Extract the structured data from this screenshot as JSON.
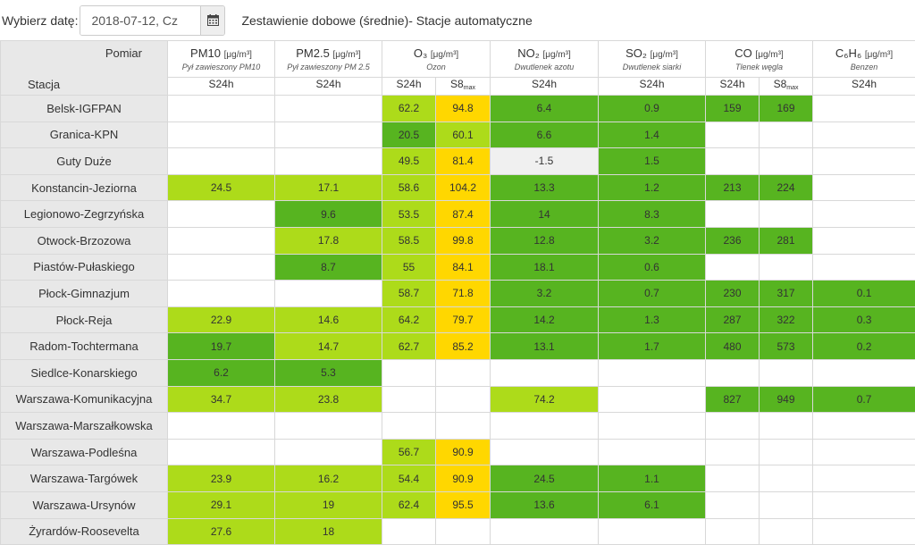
{
  "date_picker": {
    "label": "Wybierz datę:",
    "value": "2018-07-12, Cz",
    "button_icon": "calendar-icon"
  },
  "report_title": "Zestawienie dobowe (średnie)- Stacje automatyczne",
  "table": {
    "corner_top": "Pomiar",
    "corner_bottom": "Stacja",
    "subheaders": {
      "s24h": "S24h",
      "s8": "S8",
      "s8_sub": "max"
    },
    "pollutants": [
      {
        "name": "PM10",
        "unit": "[μg/m³]",
        "desc": "Pył zawieszony PM10",
        "subcols": [
          "S24h"
        ]
      },
      {
        "name": "PM2.5",
        "unit": "[μg/m³]",
        "desc": "Pył zawieszony PM 2.5",
        "subcols": [
          "S24h"
        ]
      },
      {
        "name": "O₃",
        "unit": "[μg/m³]",
        "desc": "Ozon",
        "subcols": [
          "S24h",
          "S8max"
        ]
      },
      {
        "name": "NO₂",
        "unit": "[μg/m³]",
        "desc": "Dwutlenek azotu",
        "subcols": [
          "S24h"
        ]
      },
      {
        "name": "SO₂",
        "unit": "[μg/m³]",
        "desc": "Dwutlenek siarki",
        "subcols": [
          "S24h"
        ]
      },
      {
        "name": "CO",
        "unit": "[μg/m³]",
        "desc": "Tlenek węgla",
        "subcols": [
          "S24h",
          "S8max"
        ]
      },
      {
        "name": "C₆H₆",
        "unit": "[μg/m³]",
        "desc": "Benzen",
        "subcols": [
          "S24h"
        ]
      }
    ],
    "colors": {
      "good": "#57b420",
      "ok": "#addb1a",
      "moderate": "#ffd700",
      "grey": "#f0f0f0",
      "none": "#ffffff"
    },
    "rows": [
      {
        "station": "Belsk-IGFPAN",
        "cells": [
          [
            "",
            ""
          ],
          [
            "",
            ""
          ],
          [
            "62.2",
            "ok"
          ],
          [
            "94.8",
            "moderate"
          ],
          [
            "6.4",
            "good"
          ],
          [
            "0.9",
            "good"
          ],
          [
            "159",
            "good"
          ],
          [
            "169",
            "good"
          ],
          [
            "",
            ""
          ]
        ]
      },
      {
        "station": "Granica-KPN",
        "cells": [
          [
            "",
            ""
          ],
          [
            "",
            ""
          ],
          [
            "20.5",
            "good"
          ],
          [
            "60.1",
            "ok"
          ],
          [
            "6.6",
            "good"
          ],
          [
            "1.4",
            "good"
          ],
          [
            "",
            ""
          ],
          [
            "",
            ""
          ],
          [
            "",
            ""
          ]
        ]
      },
      {
        "station": "Guty Duże",
        "cells": [
          [
            "",
            ""
          ],
          [
            "",
            ""
          ],
          [
            "49.5",
            "ok"
          ],
          [
            "81.4",
            "moderate"
          ],
          [
            "-1.5",
            "grey"
          ],
          [
            "1.5",
            "good"
          ],
          [
            "",
            ""
          ],
          [
            "",
            ""
          ],
          [
            "",
            ""
          ]
        ]
      },
      {
        "station": "Konstancin-Jeziorna",
        "cells": [
          [
            "24.5",
            "ok"
          ],
          [
            "17.1",
            "ok"
          ],
          [
            "58.6",
            "ok"
          ],
          [
            "104.2",
            "moderate"
          ],
          [
            "13.3",
            "good"
          ],
          [
            "1.2",
            "good"
          ],
          [
            "213",
            "good"
          ],
          [
            "224",
            "good"
          ],
          [
            "",
            ""
          ]
        ]
      },
      {
        "station": "Legionowo-Zegrzyńska",
        "cells": [
          [
            "",
            ""
          ],
          [
            "9.6",
            "good"
          ],
          [
            "53.5",
            "ok"
          ],
          [
            "87.4",
            "moderate"
          ],
          [
            "14",
            "good"
          ],
          [
            "8.3",
            "good"
          ],
          [
            "",
            ""
          ],
          [
            "",
            ""
          ],
          [
            "",
            ""
          ]
        ]
      },
      {
        "station": "Otwock-Brzozowa",
        "cells": [
          [
            "",
            ""
          ],
          [
            "17.8",
            "ok"
          ],
          [
            "58.5",
            "ok"
          ],
          [
            "99.8",
            "moderate"
          ],
          [
            "12.8",
            "good"
          ],
          [
            "3.2",
            "good"
          ],
          [
            "236",
            "good"
          ],
          [
            "281",
            "good"
          ],
          [
            "",
            ""
          ]
        ]
      },
      {
        "station": "Piastów-Pułaskiego",
        "cells": [
          [
            "",
            ""
          ],
          [
            "8.7",
            "good"
          ],
          [
            "55",
            "ok"
          ],
          [
            "84.1",
            "moderate"
          ],
          [
            "18.1",
            "good"
          ],
          [
            "0.6",
            "good"
          ],
          [
            "",
            ""
          ],
          [
            "",
            ""
          ],
          [
            "",
            ""
          ]
        ]
      },
      {
        "station": "Płock-Gimnazjum",
        "cells": [
          [
            "",
            ""
          ],
          [
            "",
            ""
          ],
          [
            "58.7",
            "ok"
          ],
          [
            "71.8",
            "moderate"
          ],
          [
            "3.2",
            "good"
          ],
          [
            "0.7",
            "good"
          ],
          [
            "230",
            "good"
          ],
          [
            "317",
            "good"
          ],
          [
            "0.1",
            "good"
          ]
        ]
      },
      {
        "station": "Płock-Reja",
        "cells": [
          [
            "22.9",
            "ok"
          ],
          [
            "14.6",
            "ok"
          ],
          [
            "64.2",
            "ok"
          ],
          [
            "79.7",
            "moderate"
          ],
          [
            "14.2",
            "good"
          ],
          [
            "1.3",
            "good"
          ],
          [
            "287",
            "good"
          ],
          [
            "322",
            "good"
          ],
          [
            "0.3",
            "good"
          ]
        ]
      },
      {
        "station": "Radom-Tochtermana",
        "cells": [
          [
            "19.7",
            "good"
          ],
          [
            "14.7",
            "ok"
          ],
          [
            "62.7",
            "ok"
          ],
          [
            "85.2",
            "moderate"
          ],
          [
            "13.1",
            "good"
          ],
          [
            "1.7",
            "good"
          ],
          [
            "480",
            "good"
          ],
          [
            "573",
            "good"
          ],
          [
            "0.2",
            "good"
          ]
        ]
      },
      {
        "station": "Siedlce-Konarskiego",
        "cells": [
          [
            "6.2",
            "good"
          ],
          [
            "5.3",
            "good"
          ],
          [
            "",
            ""
          ],
          [
            "",
            ""
          ],
          [
            "",
            ""
          ],
          [
            "",
            ""
          ],
          [
            "",
            ""
          ],
          [
            "",
            ""
          ],
          [
            "",
            ""
          ]
        ]
      },
      {
        "station": "Warszawa-Komunikacyjna",
        "cells": [
          [
            "34.7",
            "ok"
          ],
          [
            "23.8",
            "ok"
          ],
          [
            "",
            ""
          ],
          [
            "",
            ""
          ],
          [
            "74.2",
            "ok"
          ],
          [
            "",
            ""
          ],
          [
            "827",
            "good"
          ],
          [
            "949",
            "good"
          ],
          [
            "0.7",
            "good"
          ]
        ]
      },
      {
        "station": "Warszawa-Marszałkowska",
        "cells": [
          [
            "",
            ""
          ],
          [
            "",
            ""
          ],
          [
            "",
            ""
          ],
          [
            "",
            ""
          ],
          [
            "",
            ""
          ],
          [
            "",
            ""
          ],
          [
            "",
            ""
          ],
          [
            "",
            ""
          ],
          [
            "",
            ""
          ]
        ]
      },
      {
        "station": "Warszawa-Podleśna",
        "cells": [
          [
            "",
            ""
          ],
          [
            "",
            ""
          ],
          [
            "56.7",
            "ok"
          ],
          [
            "90.9",
            "moderate"
          ],
          [
            "",
            ""
          ],
          [
            "",
            ""
          ],
          [
            "",
            ""
          ],
          [
            "",
            ""
          ],
          [
            "",
            ""
          ]
        ]
      },
      {
        "station": "Warszawa-Targówek",
        "cells": [
          [
            "23.9",
            "ok"
          ],
          [
            "16.2",
            "ok"
          ],
          [
            "54.4",
            "ok"
          ],
          [
            "90.9",
            "moderate"
          ],
          [
            "24.5",
            "good"
          ],
          [
            "1.1",
            "good"
          ],
          [
            "",
            ""
          ],
          [
            "",
            ""
          ],
          [
            "",
            ""
          ]
        ]
      },
      {
        "station": "Warszawa-Ursynów",
        "cells": [
          [
            "29.1",
            "ok"
          ],
          [
            "19",
            "ok"
          ],
          [
            "62.4",
            "ok"
          ],
          [
            "95.5",
            "moderate"
          ],
          [
            "13.6",
            "good"
          ],
          [
            "6.1",
            "good"
          ],
          [
            "",
            ""
          ],
          [
            "",
            ""
          ],
          [
            "",
            ""
          ]
        ]
      },
      {
        "station": "Żyrardów-Roosevelta",
        "cells": [
          [
            "27.6",
            "ok"
          ],
          [
            "18",
            "ok"
          ],
          [
            "",
            ""
          ],
          [
            "",
            ""
          ],
          [
            "",
            ""
          ],
          [
            "",
            ""
          ],
          [
            "",
            ""
          ],
          [
            "",
            ""
          ],
          [
            "",
            ""
          ]
        ]
      }
    ]
  }
}
